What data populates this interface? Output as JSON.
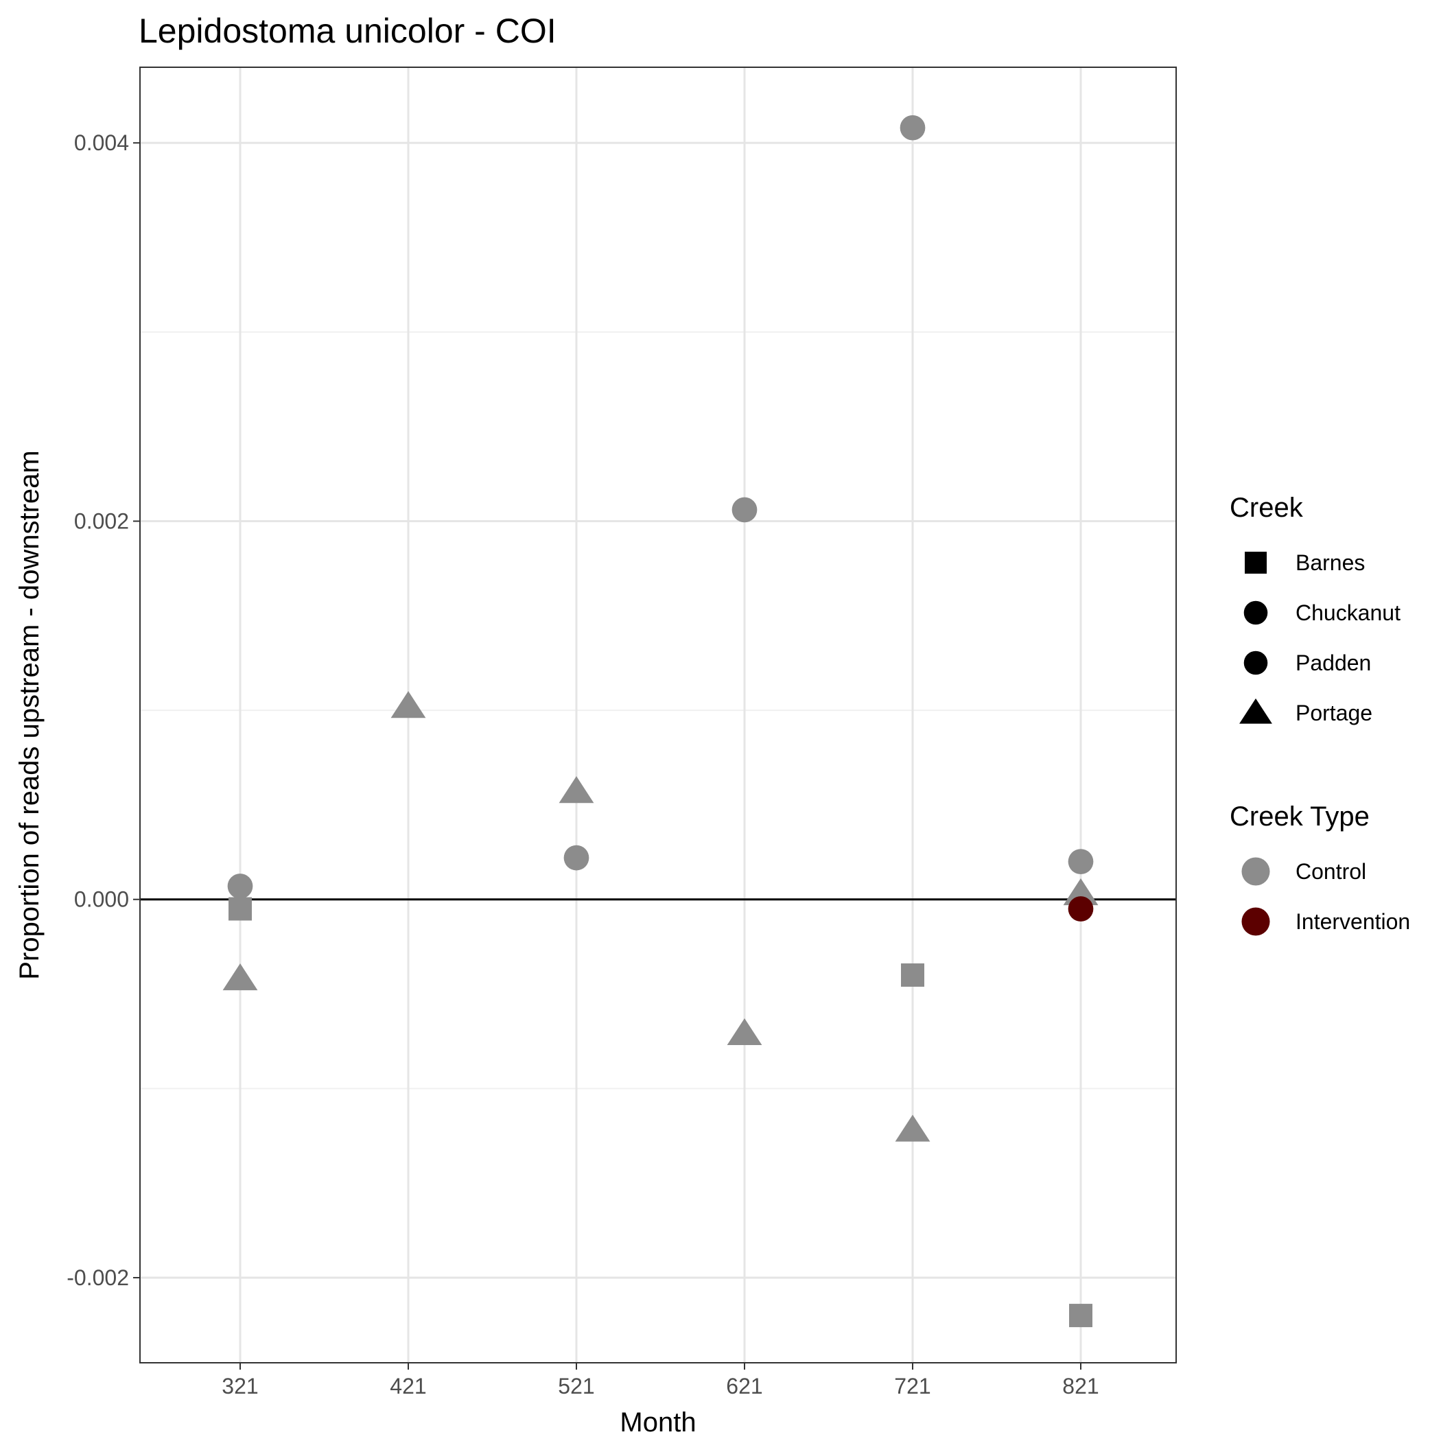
{
  "chart_data": {
    "type": "scatter",
    "title": "Lepidostoma unicolor - COI",
    "xlabel": "Month",
    "ylabel": "Proportion of reads upstream - downstream",
    "x_categories": [
      "321",
      "421",
      "521",
      "621",
      "721",
      "821"
    ],
    "ylim": [
      -0.00245,
      0.0044
    ],
    "y_ticks": [
      -0.002,
      0.0,
      0.002,
      0.004
    ],
    "y_tick_labels": [
      "-0.002",
      "0.000",
      "0.002",
      "0.004"
    ],
    "reference_line_y": 0,
    "grid": true,
    "legend_position": "right",
    "legends": [
      {
        "title": "Creek",
        "entries": [
          {
            "label": "Barnes",
            "shape": "square"
          },
          {
            "label": "Chuckanut",
            "shape": "circle"
          },
          {
            "label": "Padden",
            "shape": "circle"
          },
          {
            "label": "Portage",
            "shape": "triangle"
          }
        ]
      },
      {
        "title": "Creek Type",
        "entries": [
          {
            "label": "Control",
            "color": "#8c8c8c"
          },
          {
            "label": "Intervention",
            "color": "#5c0000"
          }
        ]
      }
    ],
    "points": [
      {
        "x": "321",
        "y": 7e-05,
        "creek": "Chuckanut",
        "type": "Control"
      },
      {
        "x": "321",
        "y": -5e-05,
        "creek": "Barnes",
        "type": "Control"
      },
      {
        "x": "321",
        "y": -0.00042,
        "creek": "Portage",
        "type": "Control"
      },
      {
        "x": "421",
        "y": 0.00102,
        "creek": "Portage",
        "type": "Control"
      },
      {
        "x": "521",
        "y": 0.00057,
        "creek": "Portage",
        "type": "Control"
      },
      {
        "x": "521",
        "y": 0.00022,
        "creek": "Chuckanut",
        "type": "Control"
      },
      {
        "x": "621",
        "y": 0.00206,
        "creek": "Chuckanut",
        "type": "Control"
      },
      {
        "x": "621",
        "y": -0.00071,
        "creek": "Portage",
        "type": "Control"
      },
      {
        "x": "721",
        "y": 0.00408,
        "creek": "Chuckanut",
        "type": "Control"
      },
      {
        "x": "721",
        "y": -0.0004,
        "creek": "Barnes",
        "type": "Control"
      },
      {
        "x": "721",
        "y": -0.00122,
        "creek": "Portage",
        "type": "Control"
      },
      {
        "x": "821",
        "y": 0.0002,
        "creek": "Chuckanut",
        "type": "Control"
      },
      {
        "x": "821",
        "y": 3e-05,
        "creek": "Portage",
        "type": "Control"
      },
      {
        "x": "821",
        "y": -5e-05,
        "creek": "Padden",
        "type": "Intervention"
      },
      {
        "x": "821",
        "y": -0.0022,
        "creek": "Barnes",
        "type": "Control"
      }
    ]
  }
}
